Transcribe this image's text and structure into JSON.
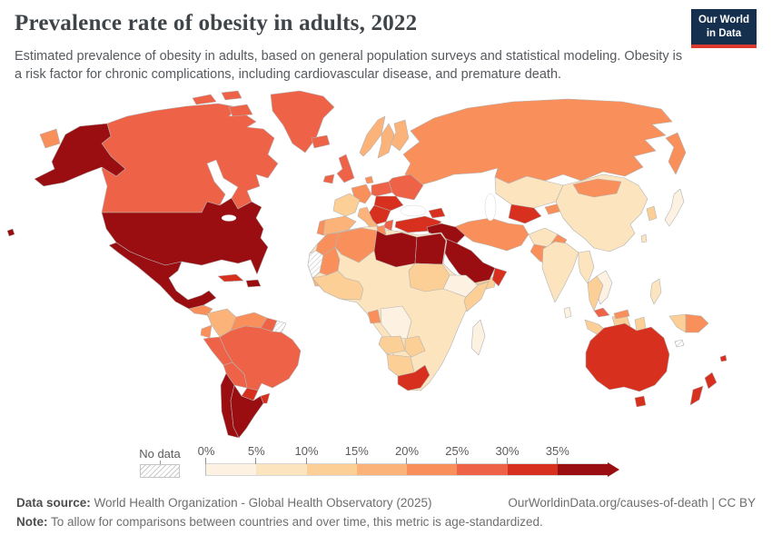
{
  "header": {
    "title": "Prevalence rate of obesity in adults, 2022",
    "subtitle": "Estimated prevalence of obesity in adults, based on general population surveys and statistical modeling. Obesity is a risk factor for chronic complications, including cardiovascular disease, and premature death.",
    "logo_line1": "Our World",
    "logo_line2": "in Data",
    "logo_colors": {
      "background": "#15304F",
      "underline": "#DC3A2F"
    }
  },
  "legend": {
    "no_data_label": "No data",
    "labels": [
      "0%",
      "5%",
      "10%",
      "15%",
      "20%",
      "25%",
      "30%",
      "35%"
    ]
  },
  "footer": {
    "source_label": "Data source:",
    "source_text": " World Health Organization - Global Health Observatory (2025)",
    "link_text": "OurWorldinData.org/causes-of-death | CC BY",
    "note_label": "Note:",
    "note_text": " To allow for comparisons between countries and over time, this metric is age-standardized."
  },
  "chart_data": {
    "type": "choropleth",
    "title": "Prevalence rate of obesity in adults, 2022",
    "unit": "%",
    "legend_position": "bottom",
    "bin_edges_percent": [
      0,
      5,
      10,
      15,
      20,
      25,
      30,
      35
    ],
    "bin_ranges": [
      "0-5%",
      "5-10%",
      "10-15%",
      "15-20%",
      "20-25%",
      "25-30%",
      "30-35%",
      "35%+"
    ],
    "bin_colors": [
      "#FDF1E1",
      "#FCE4BF",
      "#FBCF95",
      "#FBB379",
      "#F98F5A",
      "#EE6347",
      "#D7301F",
      "#9A0D11"
    ],
    "no_data_style": "white-gray-hatch",
    "regions": {
      "usa": 7,
      "canada": 5,
      "greenland": 5,
      "mexico": 7,
      "guatemala": 4,
      "central-america": 5,
      "cuba": 6,
      "hispaniola": 7,
      "colombia": 3,
      "venezuela": 4,
      "guyana": 5,
      "suriname": "nodata",
      "ecuador": 4,
      "peru": 5,
      "brazil": 5,
      "bolivia": 5,
      "paraguay": 6,
      "uruguay": 6,
      "argentina": 7,
      "chile": 7,
      "iceland": 5,
      "ireland": 5,
      "united-kingdom": 5,
      "portugal": 4,
      "spain": 3,
      "france": 2,
      "germany": 4,
      "denmark": 4,
      "norway": 3,
      "sweden": 3,
      "finland": 3,
      "poland": 5,
      "eastern-europe": 5,
      "romania-hungary": 6,
      "balkans": 6,
      "italy": 3,
      "greece": 5,
      "turkey": 6,
      "caucasus": 6,
      "russia": 4,
      "kazakhstan": 1,
      "uzbekistan-turkmenistan": 6,
      "kyrgyzstan-tajikistan": 4,
      "iran": 4,
      "afghanistan": 1,
      "pakistan": 4,
      "syria-iraq": 7,
      "saudi-arabia": 7,
      "yemen": 2,
      "oman": 6,
      "morocco": 4,
      "western-sahara": "nodata",
      "mauritania": 4,
      "senegal": 3,
      "west-africa": 2,
      "algeria": 4,
      "tunisia": 4,
      "libya": 7,
      "egypt": 7,
      "sudan": 2,
      "africa-interior": 1,
      "gabon": 4,
      "dr-congo": 0,
      "ethiopia": 0,
      "somalia": 2,
      "angola": 2,
      "zambia-zimbabwe": 2,
      "namibia-botswana": 2,
      "south-africa": 6,
      "madagascar": 0,
      "china": 1,
      "mongolia": 4,
      "india": 1,
      "sri-lanka": 0,
      "myanmar": 1,
      "thailand": 2,
      "vietnam": 0,
      "malaysia": 5,
      "malaysia-borneo": 4,
      "indonesia": 2,
      "philippines": 1,
      "korea": 2,
      "japan": 0,
      "taiwan": 1,
      "papua-indonesia": 2,
      "papua-new-guinea": 4,
      "australia": 6,
      "new-zealand": 6,
      "fiji": 6,
      "new-caledonia": "nodata"
    }
  }
}
